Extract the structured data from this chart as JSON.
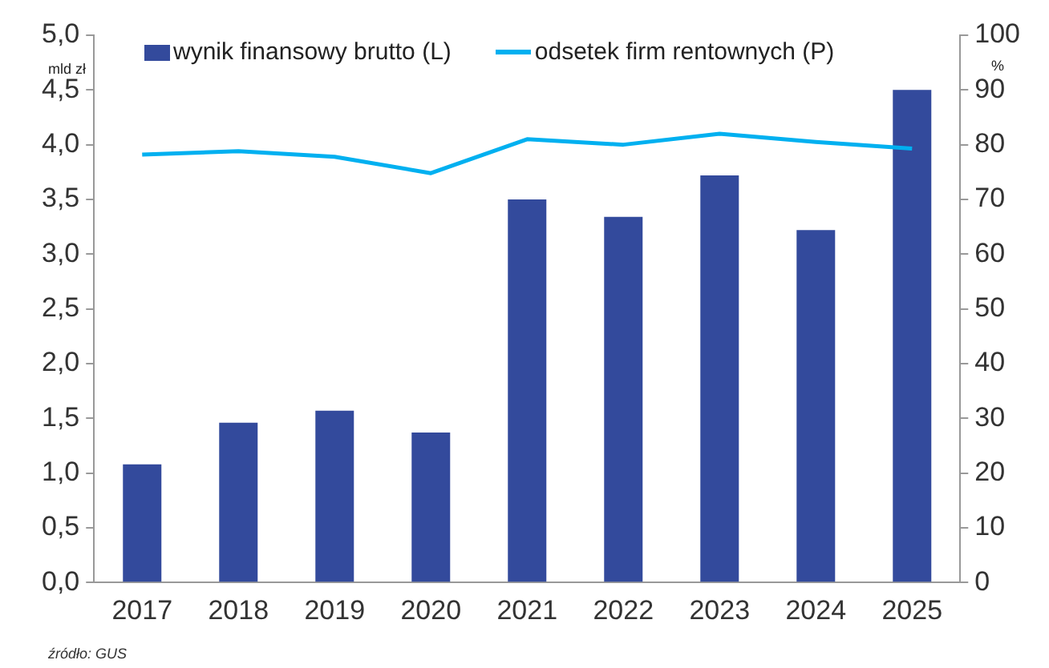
{
  "chart_data": {
    "type": "bar",
    "ylabel": "mld zł",
    "y2label": "%",
    "categories": [
      "2017",
      "2018",
      "2019",
      "2020",
      "2021",
      "2022",
      "2023",
      "2024",
      "2025"
    ],
    "series": [
      {
        "name": "wynik finansowy brutto (L)",
        "color": "#334a9c",
        "values": [
          1.08,
          1.46,
          1.57,
          1.37,
          3.5,
          3.34,
          3.72,
          3.22,
          4.5
        ]
      },
      {
        "name": "odsetek firm rentownych (P)",
        "type": "line",
        "axis": "y2",
        "color": "#00b0f0",
        "values": [
          78.2,
          78.8,
          77.8,
          74.8,
          81.0,
          80.0,
          82.0,
          80.5,
          79.3
        ]
      }
    ],
    "ylim": [
      0,
      5
    ],
    "yticks": [
      {
        "value": 0,
        "label": "0,0"
      },
      {
        "value": 0.5,
        "label": "0,5"
      },
      {
        "value": 1,
        "label": "1,0"
      },
      {
        "value": 1.5,
        "label": "1,5"
      },
      {
        "value": 2,
        "label": "2,0"
      },
      {
        "value": 2.5,
        "label": "2,5"
      },
      {
        "value": 3,
        "label": "3,0"
      },
      {
        "value": 3.5,
        "label": "3,5"
      },
      {
        "value": 4,
        "label": "4,0"
      },
      {
        "value": 4.5,
        "label": "4,5"
      },
      {
        "value": 5,
        "label": "5,0"
      }
    ],
    "y2lim": [
      0,
      100
    ],
    "y2ticks": [
      0,
      10,
      20,
      30,
      40,
      50,
      60,
      70,
      80,
      90,
      100
    ],
    "grid": false,
    "legend": "top",
    "marker": "none",
    "annotations": [
      "źródło: GUS"
    ]
  }
}
